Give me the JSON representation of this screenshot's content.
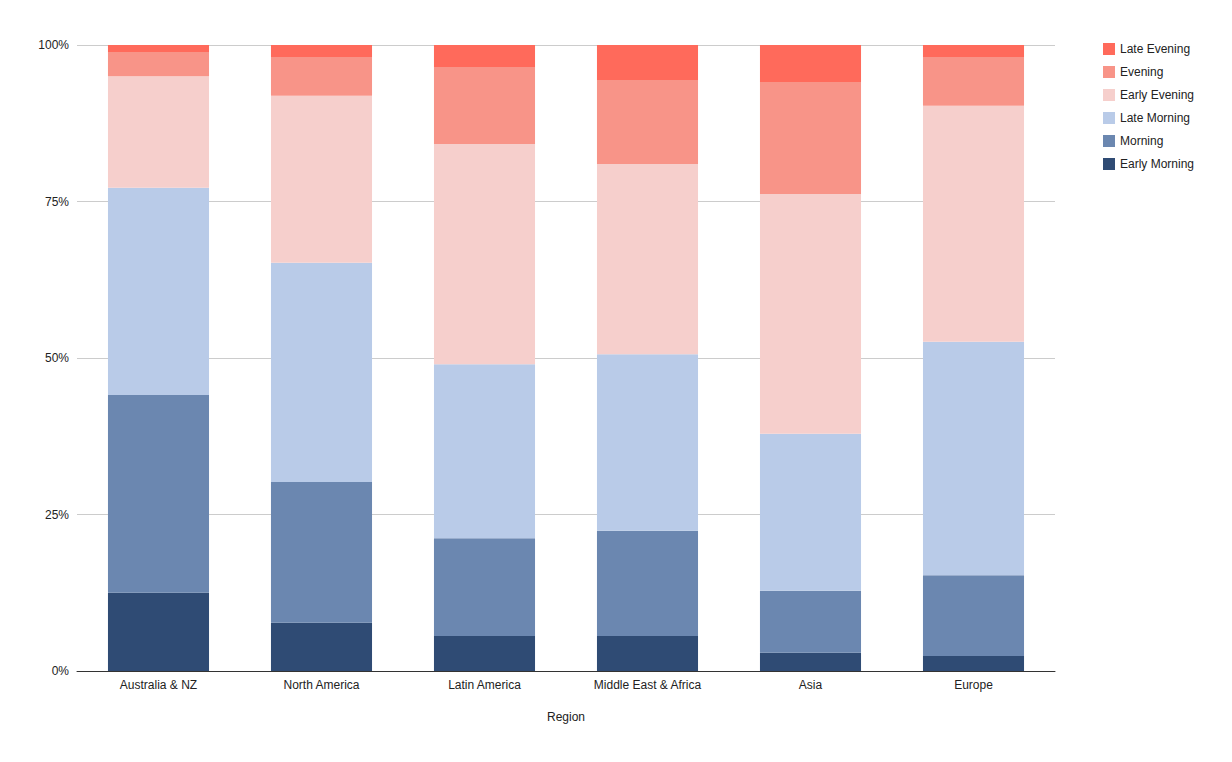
{
  "chart_data": {
    "type": "bar",
    "x_label": "Region",
    "categories": [
      "Australia & NZ",
      "North America",
      "Latin America",
      "Middle East & Africa",
      "Asia",
      "Europe"
    ],
    "series": [
      {
        "name": "Early Morning",
        "color": "#2f4b74",
        "values": [
          12.5,
          7.7,
          5.6,
          5.6,
          2.9,
          2.4
        ]
      },
      {
        "name": "Morning",
        "color": "#6b87b0",
        "values": [
          31.6,
          22.5,
          15.6,
          16.8,
          9.9,
          12.9
        ]
      },
      {
        "name": "Late Morning",
        "color": "#b9cbe8",
        "values": [
          33.1,
          35.0,
          27.8,
          28.2,
          25.1,
          37.3
        ]
      },
      {
        "name": "Early Evening",
        "color": "#f6cfcc",
        "values": [
          17.8,
          26.7,
          35.2,
          30.4,
          38.3,
          37.7
        ]
      },
      {
        "name": "Evening",
        "color": "#f89488",
        "values": [
          3.9,
          6.2,
          12.3,
          13.4,
          17.9,
          7.8
        ]
      },
      {
        "name": "Late Evening",
        "color": "#ff6a5b",
        "values": [
          1.1,
          1.9,
          3.5,
          5.6,
          5.9,
          1.9
        ]
      }
    ],
    "ylim": [
      0,
      100
    ],
    "yticks": [
      {
        "value": 0,
        "label": "0%"
      },
      {
        "value": 25,
        "label": "25%"
      },
      {
        "value": 50,
        "label": "50%"
      },
      {
        "value": 75,
        "label": "75%"
      },
      {
        "value": 100,
        "label": "100%"
      }
    ],
    "stacked": true,
    "grid": true,
    "legend": "right"
  }
}
